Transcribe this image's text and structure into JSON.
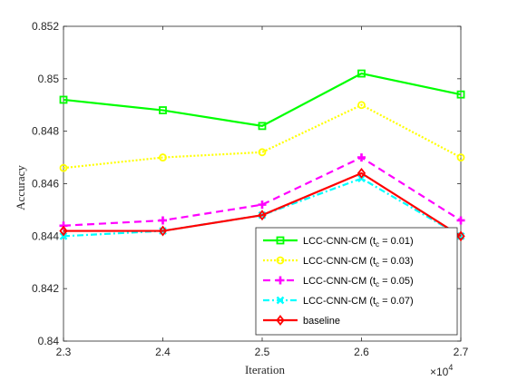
{
  "chart_data": {
    "type": "line",
    "xlabel": "Iteration",
    "ylabel": "Accuracy",
    "x": [
      2.3,
      2.4,
      2.5,
      2.6,
      2.7
    ],
    "xlim": [
      2.3,
      2.7
    ],
    "ylim": [
      0.84,
      0.852
    ],
    "x_ticks": [
      "2.3",
      "2.4",
      "2.5",
      "2.6",
      "2.7"
    ],
    "y_ticks": [
      "0.84",
      "0.842",
      "0.844",
      "0.846",
      "0.848",
      "0.85",
      "0.852"
    ],
    "x_exponent_base": "×10",
    "x_exponent_power": "4",
    "grid": false,
    "legend_position": "bottom-right",
    "series": [
      {
        "name": "LCC-CNN-CM (t_c = 0.01)",
        "label_main": "LCC-CNN-CM (t",
        "label_sub": "c",
        "label_tail": " = 0.01)",
        "color": "#00ff00",
        "dash": "",
        "marker": "square",
        "values": [
          0.8492,
          0.8488,
          0.8482,
          0.8502,
          0.8494
        ]
      },
      {
        "name": "LCC-CNN-CM (t_c = 0.03)",
        "label_main": "LCC-CNN-CM (t",
        "label_sub": "c",
        "label_tail": " = 0.03)",
        "color": "#ffff00",
        "dash": "2,2",
        "marker": "circle",
        "values": [
          0.8466,
          0.847,
          0.8472,
          0.849,
          0.847
        ]
      },
      {
        "name": "LCC-CNN-CM (t_c = 0.05)",
        "label_main": "LCC-CNN-CM (t",
        "label_sub": "c",
        "label_tail": " = 0.05)",
        "color": "#ff00ff",
        "dash": "8,5",
        "marker": "plus",
        "values": [
          0.8444,
          0.8446,
          0.8452,
          0.847,
          0.8446
        ]
      },
      {
        "name": "LCC-CNN-CM (t_c = 0.07)",
        "label_main": "LCC-CNN-CM (t",
        "label_sub": "c",
        "label_tail": " = 0.07)",
        "color": "#00ffff",
        "dash": "7,3,2,3",
        "marker": "x",
        "values": [
          0.844,
          0.8442,
          0.8448,
          0.8462,
          0.844
        ]
      },
      {
        "name": "baseline",
        "label_main": "baseline",
        "label_sub": "",
        "label_tail": "",
        "color": "#ff0000",
        "dash": "",
        "marker": "diamond",
        "values": [
          0.8442,
          0.8442,
          0.8448,
          0.8464,
          0.844
        ]
      }
    ]
  }
}
